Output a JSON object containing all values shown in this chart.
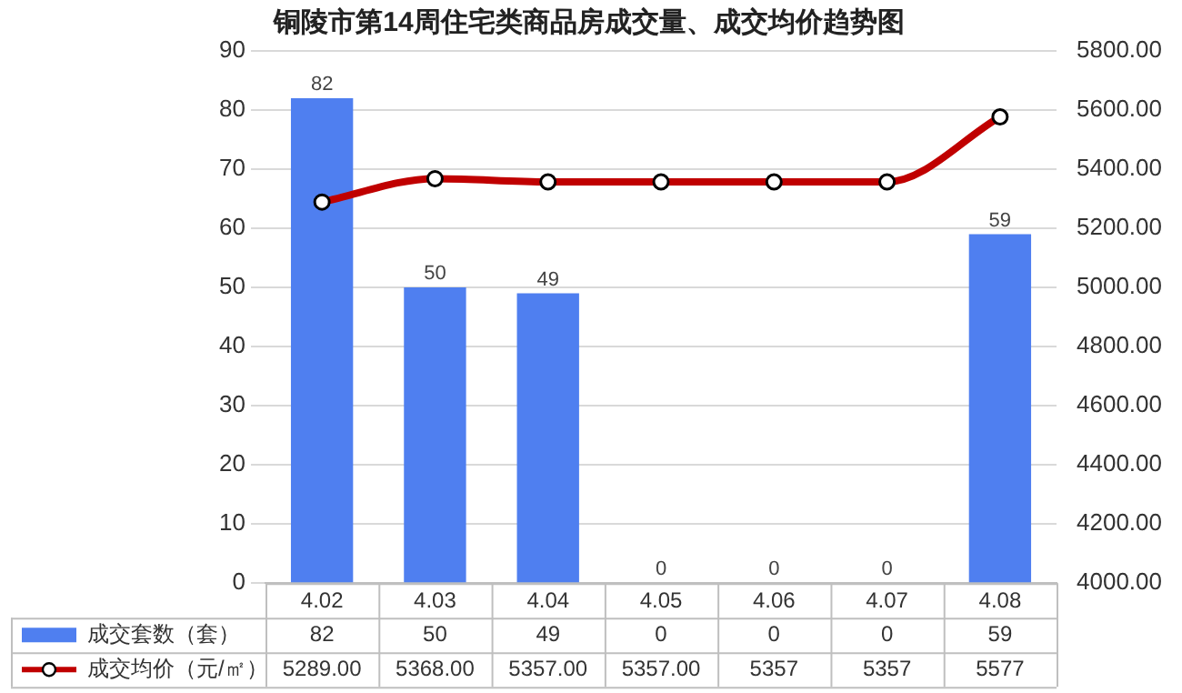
{
  "chart_data": {
    "type": "bar",
    "title": "铜陵市第14周住宅类商品房成交量、成交均价趋势图",
    "categories": [
      "4.02",
      "4.03",
      "4.04",
      "4.05",
      "4.06",
      "4.07",
      "4.08"
    ],
    "series": [
      {
        "name": "成交套数（套）",
        "color": "#4f7ff0",
        "values": [
          82,
          50,
          49,
          0,
          0,
          0,
          59
        ],
        "value_labels": [
          "82",
          "50",
          "49",
          "0",
          "0",
          "0",
          "59"
        ]
      },
      {
        "name": "成交均价（元/㎡）",
        "type": "line",
        "axis": "y2",
        "color": "#c00000",
        "marker": "circle",
        "values": [
          5289,
          5368,
          5357,
          5357,
          5357,
          5357,
          5577
        ],
        "value_labels": [
          "5289.00",
          "5368.00",
          "5357.00",
          "5357.00",
          "5357",
          "5357",
          "5577"
        ]
      }
    ],
    "ylim": [
      0,
      90
    ],
    "yticks": [
      0,
      10,
      20,
      30,
      40,
      50,
      60,
      70,
      80,
      90
    ],
    "y2lim": [
      4000,
      5800
    ],
    "y2ticks": [
      {
        "value": 4000,
        "label": "4000.00"
      },
      {
        "value": 4200,
        "label": "4200.00"
      },
      {
        "value": 4400,
        "label": "4400.00"
      },
      {
        "value": 4600,
        "label": "4600.00"
      },
      {
        "value": 4800,
        "label": "4800.00"
      },
      {
        "value": 5000,
        "label": "5000.00"
      },
      {
        "value": 5200,
        "label": "5200.00"
      },
      {
        "value": 5400,
        "label": "5400.00"
      },
      {
        "value": 5600,
        "label": "5600.00"
      },
      {
        "value": 5800,
        "label": "5800.00"
      }
    ],
    "grid": "y",
    "legend": "bottom",
    "data_labels": true
  }
}
